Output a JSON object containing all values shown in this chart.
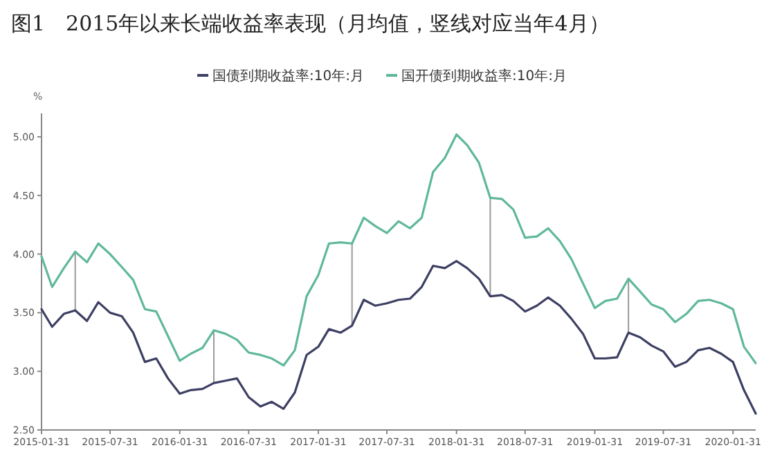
{
  "chart_data": {
    "type": "line",
    "title": "图1　2015年以来长端收益率表现（月均值，竖线对应当年4月）",
    "ylabel": "%",
    "x": [
      "2015-01-31",
      "2015-02-28",
      "2015-03-31",
      "2015-04-30",
      "2015-05-31",
      "2015-06-30",
      "2015-07-31",
      "2015-08-31",
      "2015-09-30",
      "2015-10-31",
      "2015-11-30",
      "2015-12-31",
      "2016-01-31",
      "2016-02-29",
      "2016-03-31",
      "2016-04-30",
      "2016-05-31",
      "2016-06-30",
      "2016-07-31",
      "2016-08-31",
      "2016-09-30",
      "2016-10-31",
      "2016-11-30",
      "2016-12-31",
      "2017-01-31",
      "2017-02-28",
      "2017-03-31",
      "2017-04-30",
      "2017-05-31",
      "2017-06-30",
      "2017-07-31",
      "2017-08-31",
      "2017-09-30",
      "2017-10-31",
      "2017-11-30",
      "2017-12-31",
      "2018-01-31",
      "2018-02-28",
      "2018-03-31",
      "2018-04-30",
      "2018-05-31",
      "2018-06-30",
      "2018-07-31",
      "2018-08-31",
      "2018-09-30",
      "2018-10-31",
      "2018-11-30",
      "2018-12-31",
      "2019-01-31",
      "2019-02-28",
      "2019-03-31",
      "2019-04-30",
      "2019-05-31",
      "2019-06-30",
      "2019-07-31",
      "2019-08-31",
      "2019-09-30",
      "2019-10-31",
      "2019-11-30",
      "2019-12-31",
      "2020-01-31",
      "2020-02-29",
      "2020-03-31"
    ],
    "series": [
      {
        "name": "国债到期收益率:10年:月",
        "color": "#3d3f63",
        "values": [
          3.53,
          3.38,
          3.49,
          3.52,
          3.43,
          3.59,
          3.5,
          3.47,
          3.33,
          3.08,
          3.11,
          2.94,
          2.81,
          2.84,
          2.85,
          2.9,
          2.92,
          2.94,
          2.78,
          2.7,
          2.74,
          2.68,
          2.82,
          3.14,
          3.21,
          3.36,
          3.33,
          3.39,
          3.61,
          3.56,
          3.58,
          3.61,
          3.62,
          3.72,
          3.9,
          3.88,
          3.94,
          3.88,
          3.79,
          3.64,
          3.65,
          3.6,
          3.51,
          3.56,
          3.63,
          3.56,
          3.45,
          3.32,
          3.11,
          3.11,
          3.12,
          3.33,
          3.29,
          3.22,
          3.17,
          3.04,
          3.08,
          3.18,
          3.2,
          3.15,
          3.08,
          2.84,
          2.64
        ]
      },
      {
        "name": "国开债到期收益率:10年:月",
        "color": "#5fb89a",
        "values": [
          3.98,
          3.72,
          3.88,
          4.02,
          3.93,
          4.09,
          4.0,
          3.89,
          3.78,
          3.53,
          3.51,
          3.3,
          3.09,
          3.15,
          3.2,
          3.35,
          3.32,
          3.27,
          3.16,
          3.14,
          3.11,
          3.05,
          3.18,
          3.64,
          3.82,
          4.09,
          4.1,
          4.09,
          4.31,
          4.24,
          4.18,
          4.28,
          4.22,
          4.31,
          4.7,
          4.82,
          5.02,
          4.93,
          4.78,
          4.48,
          4.47,
          4.38,
          4.14,
          4.15,
          4.22,
          4.11,
          3.96,
          3.75,
          3.54,
          3.6,
          3.62,
          3.79,
          3.68,
          3.57,
          3.53,
          3.42,
          3.49,
          3.6,
          3.61,
          3.58,
          3.53,
          3.21,
          3.07
        ]
      }
    ],
    "xlim": [
      "2015-01-31",
      "2020-03-31"
    ],
    "xticks": [
      {
        "value": "2015-01-31",
        "label": "2015-01-31"
      },
      {
        "value": "2015-07-31",
        "label": "2015-07-31"
      },
      {
        "value": "2016-01-31",
        "label": "2016-01-31"
      },
      {
        "value": "2016-07-31",
        "label": "2016-07-31"
      },
      {
        "value": "2017-01-31",
        "label": "2017-01-31"
      },
      {
        "value": "2017-07-31",
        "label": "2017-07-31"
      },
      {
        "value": "2018-01-31",
        "label": "2018-01-31"
      },
      {
        "value": "2018-07-31",
        "label": "2018-07-31"
      },
      {
        "value": "2019-01-31",
        "label": "2019-01-31"
      },
      {
        "value": "2019-07-31",
        "label": "2019-07-31"
      },
      {
        "value": "2020-01-31",
        "label": "2020-01-31"
      }
    ],
    "ylim": [
      2.5,
      5.2
    ],
    "yticks": [
      {
        "value": 2.5,
        "label": "2.50"
      },
      {
        "value": 3,
        "label": "3.00"
      },
      {
        "value": 3.5,
        "label": "3.50"
      },
      {
        "value": 4,
        "label": "4.00"
      },
      {
        "value": 4.5,
        "label": "4.50"
      },
      {
        "value": 5,
        "label": "5.00"
      }
    ],
    "ref_lines": [
      {
        "axis": "x",
        "value": "2015-04-30",
        "color": "#999999"
      },
      {
        "axis": "x",
        "value": "2016-04-30",
        "color": "#999999"
      },
      {
        "axis": "x",
        "value": "2017-04-30",
        "color": "#999999"
      },
      {
        "axis": "x",
        "value": "2018-04-30",
        "color": "#999999"
      },
      {
        "axis": "x",
        "value": "2019-04-30",
        "color": "#999999"
      }
    ],
    "legend": "top"
  }
}
